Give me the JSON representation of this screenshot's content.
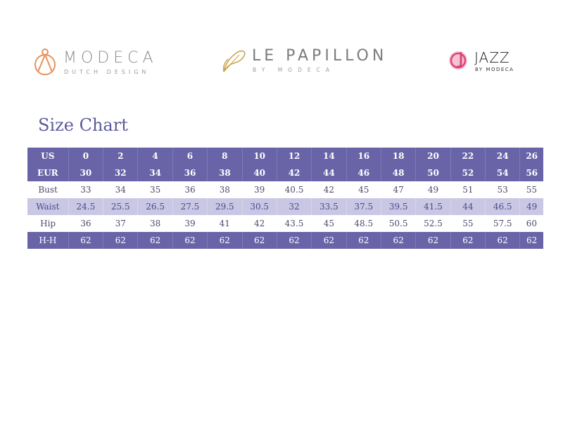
{
  "logos": {
    "modeca": {
      "main": "MODECA",
      "sub": "DUTCH DESIGN",
      "color": "#e8915a"
    },
    "papillon": {
      "main": "LE PAPILLON",
      "sub": "BY MODECA",
      "color": "#c9a24e"
    },
    "jazz": {
      "main": "JAZZ",
      "sub": "BY MODECA",
      "color": "#e0447a"
    }
  },
  "title": "Size Chart",
  "colors": {
    "header": "#6964a8",
    "band": "#c9c7e4",
    "title": "#5c5a9a"
  },
  "table": {
    "rows": [
      {
        "label": "US",
        "values": [
          "0",
          "2",
          "4",
          "6",
          "8",
          "10",
          "12",
          "14",
          "16",
          "18",
          "20",
          "22",
          "24",
          "26"
        ]
      },
      {
        "label": "EUR",
        "values": [
          "30",
          "32",
          "34",
          "36",
          "38",
          "40",
          "42",
          "44",
          "46",
          "48",
          "50",
          "52",
          "54",
          "56"
        ]
      },
      {
        "label": "Bust",
        "values": [
          "33",
          "34",
          "35",
          "36",
          "38",
          "39",
          "40.5",
          "42",
          "45",
          "47",
          "49",
          "51",
          "53",
          "55"
        ]
      },
      {
        "label": "Waist",
        "values": [
          "24.5",
          "25.5",
          "26.5",
          "27.5",
          "29.5",
          "30.5",
          "32",
          "33.5",
          "37.5",
          "39.5",
          "41.5",
          "44",
          "46.5",
          "49"
        ]
      },
      {
        "label": "Hip",
        "values": [
          "36",
          "37",
          "38",
          "39",
          "41",
          "42",
          "43.5",
          "45",
          "48.5",
          "50.5",
          "52.5",
          "55",
          "57.5",
          "60"
        ]
      },
      {
        "label": "H-H",
        "values": [
          "62",
          "62",
          "62",
          "62",
          "62",
          "62",
          "62",
          "62",
          "62",
          "62",
          "62",
          "62",
          "62",
          "62"
        ]
      }
    ]
  }
}
